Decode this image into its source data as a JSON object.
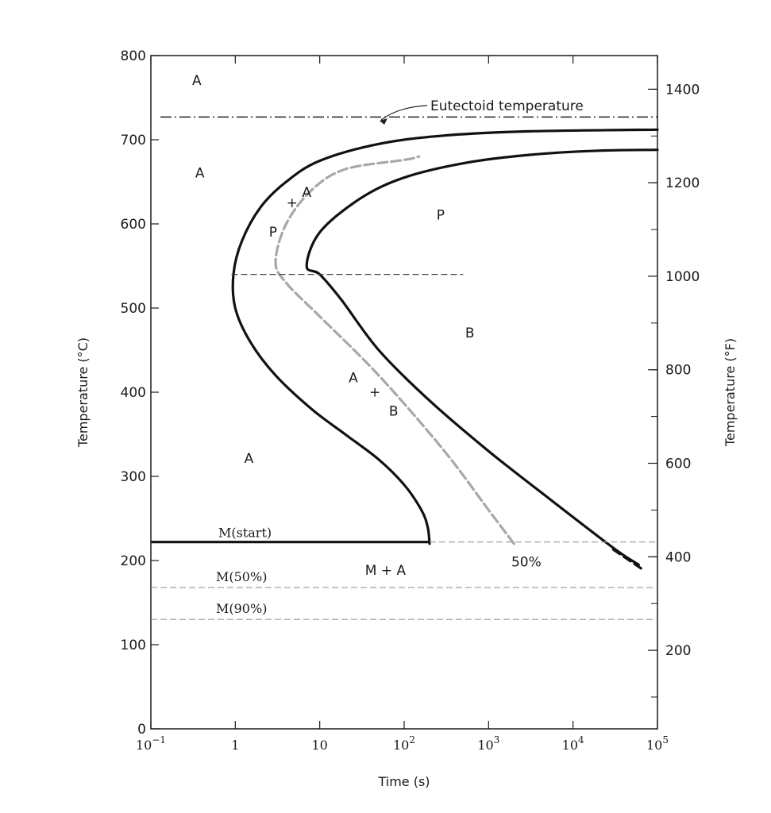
{
  "chart_data": {
    "type": "line",
    "x_axis": {
      "label": "Time (s)",
      "scale": "log",
      "range": [
        0.1,
        100000
      ],
      "tick_values": [
        0.1,
        1,
        10,
        100,
        1000,
        10000,
        100000
      ],
      "ticks": [
        {
          "base": "10",
          "exp": "−1"
        },
        {
          "base": "1",
          "exp": ""
        },
        {
          "base": "10",
          "exp": ""
        },
        {
          "base": "10",
          "exp": "2"
        },
        {
          "base": "10",
          "exp": "3"
        },
        {
          "base": "10",
          "exp": "4"
        },
        {
          "base": "10",
          "exp": "5"
        }
      ]
    },
    "y_axis_left": {
      "label": "Temperature (°C)",
      "range": [
        0,
        800
      ],
      "ticks": [
        "0",
        "100",
        "200",
        "300",
        "400",
        "500",
        "600",
        "700",
        "800"
      ]
    },
    "y_axis_right": {
      "label": "Temperature (°F)",
      "ticks": [
        "200",
        "400",
        "600",
        "800",
        "1000",
        "1200",
        "1400"
      ],
      "tick_values_F": [
        200,
        400,
        600,
        800,
        1000,
        1200,
        1400
      ]
    },
    "grid": false,
    "series": [
      {
        "style": "solid",
        "points": [
          [
            200,
            220
          ],
          [
            190,
            240
          ],
          [
            160,
            260
          ],
          [
            100,
            290
          ],
          [
            50,
            320
          ],
          [
            20,
            350
          ],
          [
            8,
            380
          ],
          [
            3,
            420
          ],
          [
            1.5,
            460
          ],
          [
            1,
            500
          ],
          [
            0.95,
            540
          ],
          [
            1.2,
            580
          ],
          [
            2,
            620
          ],
          [
            4,
            650
          ],
          [
            10,
            675
          ],
          [
            50,
            695
          ],
          [
            300,
            705
          ],
          [
            3000,
            710
          ],
          [
            100000,
            712
          ]
        ]
      },
      {
        "style": "solid",
        "points": [
          [
            60000,
            195
          ],
          [
            30000,
            215
          ],
          [
            5000,
            275
          ],
          [
            1000,
            330
          ],
          [
            200,
            390
          ],
          [
            50,
            450
          ],
          [
            18,
            510
          ],
          [
            10,
            540
          ],
          [
            7,
            550
          ],
          [
            10,
            590
          ],
          [
            30,
            630
          ],
          [
            100,
            655
          ],
          [
            500,
            672
          ],
          [
            3000,
            682
          ],
          [
            20000,
            687
          ],
          [
            100000,
            688
          ]
        ]
      },
      {
        "style": "dashed",
        "points": [
          [
            2000,
            220
          ],
          [
            1000,
            260
          ],
          [
            300,
            330
          ],
          [
            50,
            420
          ],
          [
            10,
            490
          ],
          [
            4,
            530
          ],
          [
            3,
            555
          ],
          [
            4,
            600
          ],
          [
            8,
            640
          ],
          [
            20,
            665
          ],
          [
            100,
            676
          ],
          [
            150,
            680
          ]
        ]
      },
      {
        "style": "dashed-thick",
        "points": [
          [
            30000,
            213
          ],
          [
            70000,
            188
          ]
        ]
      }
    ],
    "reference_lines": [
      {
        "label": "Eutectoid temperature",
        "y": 727,
        "style": "dash-dot"
      },
      {
        "label": "",
        "y": 540,
        "x_range": [
          0.9,
          500
        ],
        "style": "dashed"
      },
      {
        "label": "M(start)",
        "y": 222,
        "style": "solid"
      },
      {
        "label": "M(50%)",
        "y": 168,
        "style": "dashed"
      },
      {
        "label": "M(90%)",
        "y": 130,
        "style": "dashed"
      }
    ],
    "region_labels": [
      {
        "text": "A",
        "x": 0.35,
        "y": 765
      },
      {
        "text": "A",
        "x": 0.38,
        "y": 655
      },
      {
        "text": "P",
        "x": 2.8,
        "y": 585
      },
      {
        "text": "+",
        "x": 4.7,
        "y": 620
      },
      {
        "text": "A",
        "x": 7.0,
        "y": 632
      },
      {
        "text": "P",
        "x": 270,
        "y": 605
      },
      {
        "text": "B",
        "x": 600,
        "y": 465
      },
      {
        "text": "A",
        "x": 25,
        "y": 412
      },
      {
        "text": "+",
        "x": 45,
        "y": 395
      },
      {
        "text": "B",
        "x": 75,
        "y": 372
      },
      {
        "text": "A",
        "x": 1.45,
        "y": 316
      },
      {
        "text": "M + A",
        "x": 60,
        "y": 183
      },
      {
        "text": "50%",
        "x": 2800,
        "y": 193
      }
    ]
  }
}
